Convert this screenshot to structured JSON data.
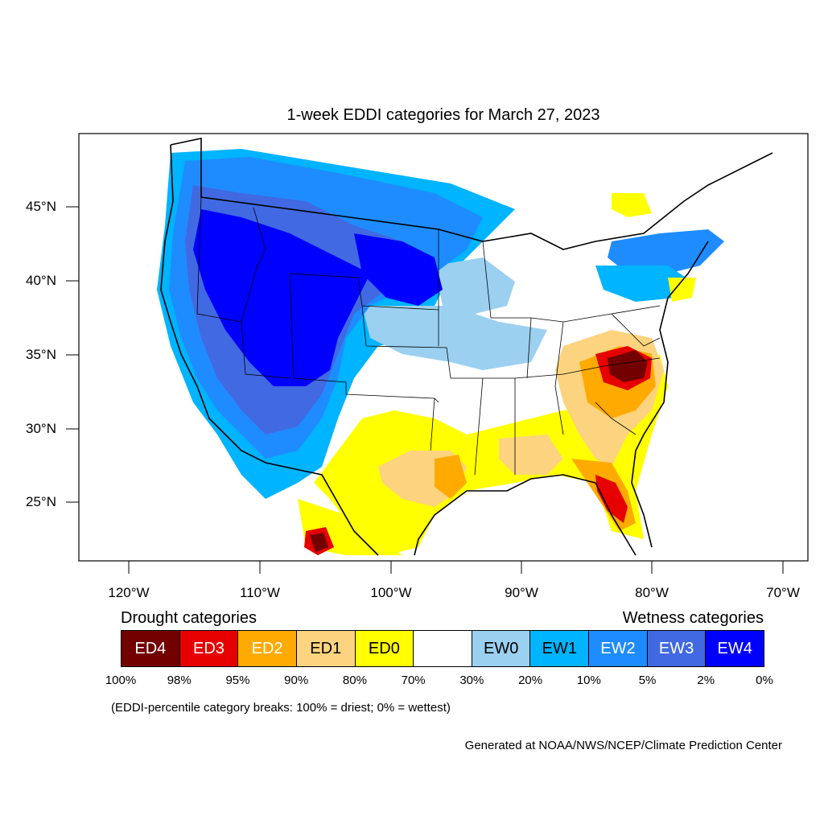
{
  "title": "1-week EDDI categories for March 27, 2023",
  "lat_labels": [
    "45°N",
    "40°N",
    "35°N",
    "30°N",
    "25°N"
  ],
  "lon_labels": [
    "120°W",
    "110°W",
    "100°W",
    "90°W",
    "80°W",
    "70°W"
  ],
  "legend": {
    "drought_heading": "Drought categories",
    "wetness_heading": "Wetness categories",
    "categories": [
      {
        "label": "ED4",
        "color": "#730000",
        "text_color": "#ffffff"
      },
      {
        "label": "ED3",
        "color": "#e60000",
        "text_color": "#ffffff"
      },
      {
        "label": "ED2",
        "color": "#ffaa00",
        "text_color": "#ffffff"
      },
      {
        "label": "ED1",
        "color": "#fcd37f",
        "text_color": "#000000"
      },
      {
        "label": "ED0",
        "color": "#ffff00",
        "text_color": "#000000"
      },
      {
        "label": "",
        "color": "#ffffff",
        "text_color": "#000000"
      },
      {
        "label": "EW0",
        "color": "#9bd0f0",
        "text_color": "#000000"
      },
      {
        "label": "EW1",
        "color": "#00b4ff",
        "text_color": "#000000"
      },
      {
        "label": "EW2",
        "color": "#1e8cff",
        "text_color": "#ffffff"
      },
      {
        "label": "EW3",
        "color": "#4169e1",
        "text_color": "#ffffff"
      },
      {
        "label": "EW4",
        "color": "#0000ff",
        "text_color": "#ffffff"
      }
    ],
    "percentiles": [
      "100%",
      "98%",
      "95%",
      "90%",
      "80%",
      "70%",
      "30%",
      "20%",
      "10%",
      "5%",
      "2%",
      "0%"
    ]
  },
  "note": "(EDDI-percentile category breaks: 100% = driest; 0% = wettest)",
  "credit": "Generated at NOAA/NWS/NCEP/Climate Prediction Center"
}
